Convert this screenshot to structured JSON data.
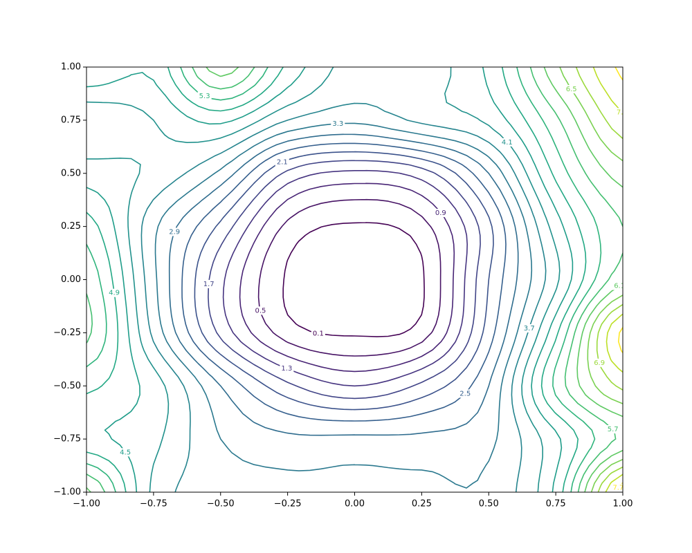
{
  "chart_data": {
    "type": "contour",
    "x": [
      -1,
      -0.75,
      -0.5,
      -0.25,
      0,
      0.25,
      0.5,
      0.75,
      1
    ],
    "y": [
      -1,
      -0.75,
      -0.5,
      -0.25,
      0,
      0.25,
      0.5,
      0.75,
      1
    ],
    "z": [
      [
        6.2,
        4.0,
        3.5,
        3.4,
        3.4,
        3.4,
        3.4,
        4.6,
        8.0
      ],
      [
        4.6,
        4.2,
        3.3,
        3.0,
        3.0,
        3.0,
        3.2,
        4.4,
        5.8
      ],
      [
        5.0,
        4.3,
        2.9,
        1.8,
        1.3,
        1.8,
        2.9,
        5.4,
        7.0
      ],
      [
        5.8,
        3.6,
        1.6,
        0.3,
        0.05,
        0.3,
        2.3,
        4.8,
        7.8
      ],
      [
        5.6,
        3.4,
        1.4,
        0.05,
        -0.1,
        0.05,
        2.1,
        4.0,
        6.0
      ],
      [
        5.1,
        3.4,
        2.0,
        0.4,
        0.05,
        0.35,
        2.0,
        4.3,
        5.7
      ],
      [
        4.3,
        4.0,
        3.2,
        1.6,
        1.2,
        1.5,
        2.9,
        5.0,
        6.3
      ],
      [
        3.8,
        4.1,
        4.6,
        3.7,
        3.4,
        3.8,
        4.2,
        5.6,
        7.2
      ],
      [
        4.9,
        4.6,
        6.3,
        4.8,
        3.9,
        3.9,
        4.6,
        6.4,
        7.8
      ]
    ],
    "levels": [
      0.1,
      0.5,
      0.9,
      1.3,
      1.7,
      2.1,
      2.5,
      2.9,
      3.3,
      3.7,
      4.1,
      4.5,
      4.9,
      5.3,
      5.7,
      6.1,
      6.5,
      6.9,
      7.3,
      7.7
    ],
    "colors": [
      "#440154",
      "#471365",
      "#482475",
      "#463480",
      "#414487",
      "#3b528b",
      "#355f8d",
      "#2f6c8e",
      "#2a788e",
      "#25848e",
      "#21918c",
      "#1e9c89",
      "#22a884",
      "#2fb47c",
      "#44bf70",
      "#5ec962",
      "#7ad151",
      "#9bd93c",
      "#bddf26",
      "#fde725"
    ],
    "xlim": [
      -1,
      1
    ],
    "ylim": [
      -1,
      1
    ],
    "xticks": [
      {
        "value": -1,
        "label": "−1.00"
      },
      {
        "value": -0.75,
        "label": "−0.75"
      },
      {
        "value": -0.5,
        "label": "−0.50"
      },
      {
        "value": -0.25,
        "label": "−0.25"
      },
      {
        "value": 0,
        "label": "0.00"
      },
      {
        "value": 0.25,
        "label": "0.25"
      },
      {
        "value": 0.5,
        "label": "0.50"
      },
      {
        "value": 0.75,
        "label": "0.75"
      },
      {
        "value": 1,
        "label": "1.00"
      }
    ],
    "yticks": [
      {
        "value": -1,
        "label": "−1.00"
      },
      {
        "value": -0.75,
        "label": "−0.75"
      },
      {
        "value": -0.5,
        "label": "−0.50"
      },
      {
        "value": -0.25,
        "label": "−0.25"
      },
      {
        "value": 0,
        "label": "0.00"
      },
      {
        "value": 0.25,
        "label": "0.25"
      },
      {
        "value": 0.5,
        "label": "0.50"
      },
      {
        "value": 0.75,
        "label": "0.75"
      },
      {
        "value": 1,
        "label": "1.00"
      }
    ]
  }
}
